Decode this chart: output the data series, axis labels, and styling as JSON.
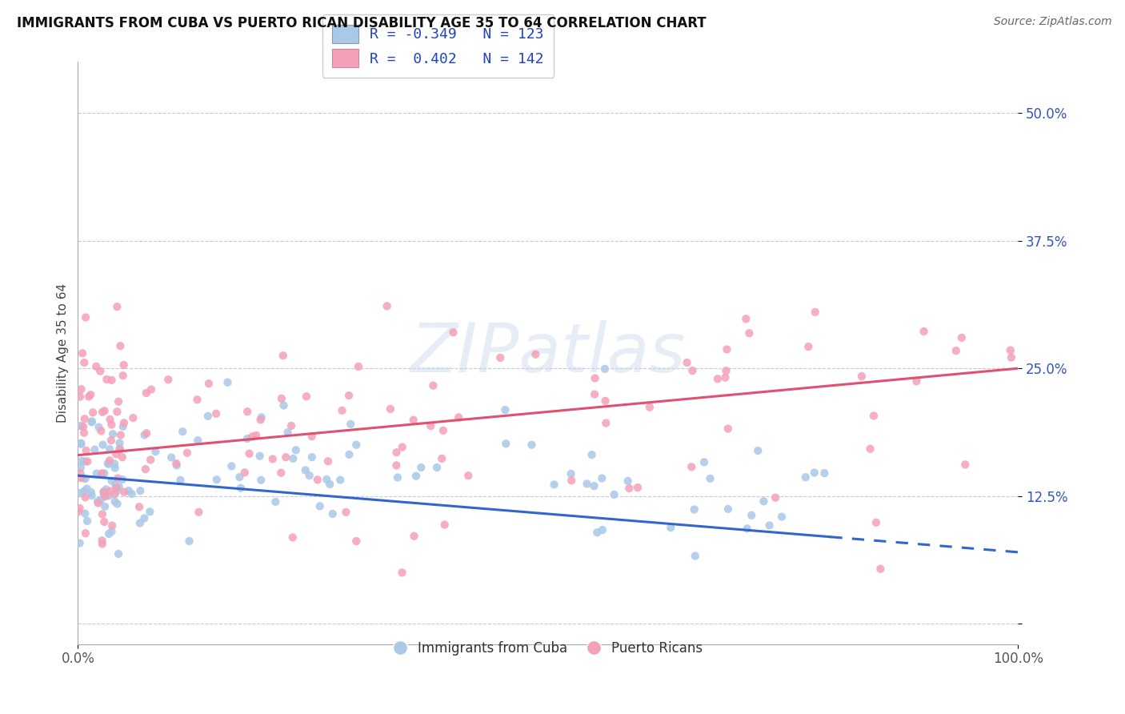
{
  "title": "IMMIGRANTS FROM CUBA VS PUERTO RICAN DISABILITY AGE 35 TO 64 CORRELATION CHART",
  "source_text": "Source: ZipAtlas.com",
  "ylabel": "Disability Age 35 to 64",
  "xlim": [
    0,
    100
  ],
  "ylim": [
    -2,
    55
  ],
  "ytick_positions": [
    0,
    12.5,
    25.0,
    37.5,
    50.0
  ],
  "ytick_labels": [
    "",
    "12.5%",
    "25.0%",
    "37.5%",
    "50.0%"
  ],
  "xtick_positions": [
    0,
    100
  ],
  "xtick_labels": [
    "0.0%",
    "100.0%"
  ],
  "watermark_text": "ZIPatlas",
  "blue_color": "#aac8e8",
  "pink_color": "#f4a0b8",
  "blue_line_color": "#3366cc",
  "pink_line_color": "#e05070",
  "blue_R": -0.349,
  "blue_N": 123,
  "pink_R": 0.402,
  "pink_N": 142,
  "grid_color": "#bbbbcc",
  "bg_color": "#ffffff",
  "title_color": "#111111",
  "source_color": "#666666",
  "legend_R_N_color": "#2244bb",
  "legend_label_color": "#333333"
}
